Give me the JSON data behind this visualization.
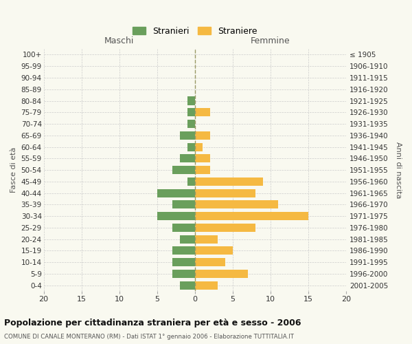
{
  "age_groups": [
    "100+",
    "95-99",
    "90-94",
    "85-89",
    "80-84",
    "75-79",
    "70-74",
    "65-69",
    "60-64",
    "55-59",
    "50-54",
    "45-49",
    "40-44",
    "35-39",
    "30-34",
    "25-29",
    "20-24",
    "15-19",
    "10-14",
    "5-9",
    "0-4"
  ],
  "birth_years": [
    "≤ 1905",
    "1906-1910",
    "1911-1915",
    "1916-1920",
    "1921-1925",
    "1926-1930",
    "1931-1935",
    "1936-1940",
    "1941-1945",
    "1946-1950",
    "1951-1955",
    "1956-1960",
    "1961-1965",
    "1966-1970",
    "1971-1975",
    "1976-1980",
    "1981-1985",
    "1986-1990",
    "1991-1995",
    "1996-2000",
    "2001-2005"
  ],
  "maschi": [
    0,
    0,
    0,
    0,
    1,
    1,
    1,
    2,
    1,
    2,
    3,
    1,
    5,
    3,
    5,
    3,
    2,
    3,
    3,
    3,
    2
  ],
  "femmine": [
    0,
    0,
    0,
    0,
    0,
    2,
    0,
    2,
    1,
    2,
    2,
    9,
    8,
    11,
    15,
    8,
    3,
    5,
    4,
    7,
    3
  ],
  "maschi_color": "#6a9f5c",
  "femmine_color": "#f5b942",
  "background_color": "#f9f9f0",
  "grid_color": "#cccccc",
  "dashed_line_color": "#999966",
  "title": "Popolazione per cittadinanza straniera per età e sesso - 2006",
  "subtitle": "COMUNE DI CANALE MONTERANO (RM) - Dati ISTAT 1° gennaio 2006 - Elaborazione TUTTITALIA.IT",
  "xlabel_left": "Maschi",
  "xlabel_right": "Femmine",
  "ylabel_left": "Fasce di età",
  "ylabel_right": "Anni di nascita",
  "legend_maschi": "Stranieri",
  "legend_femmine": "Straniere",
  "xlim": 20
}
